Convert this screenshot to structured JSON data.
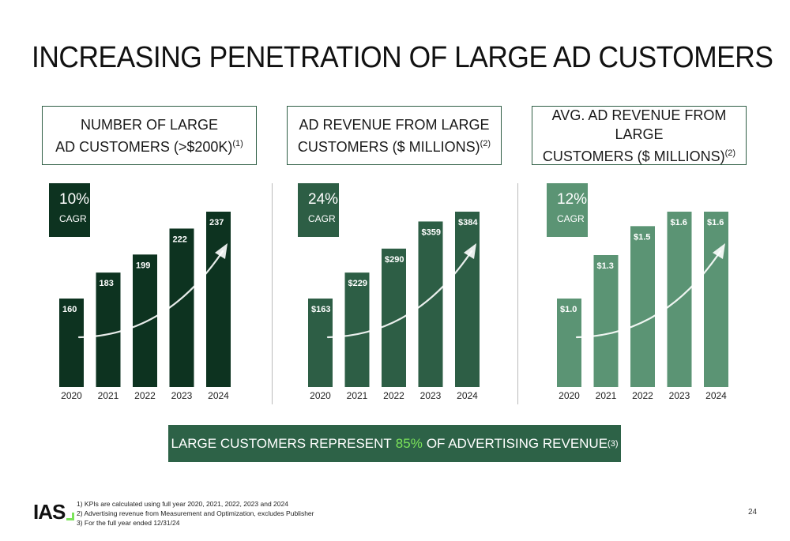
{
  "title": "INCREASING PENETRATION OF LARGE AD CUSTOMERS",
  "chart_data": [
    {
      "type": "bar",
      "title_line1": "NUMBER OF LARGE",
      "title_line2": "AD CUSTOMERS (>$200K)",
      "title_note": "(1)",
      "cagr_value": "10%",
      "cagr_label": "CAGR",
      "categories": [
        "2020",
        "2021",
        "2022",
        "2023",
        "2024"
      ],
      "values": [
        160,
        183,
        199,
        222,
        237
      ],
      "labels": [
        "160",
        "183",
        "199",
        "222",
        "237"
      ],
      "bar_color": "#0d3320",
      "trend_arrow": true
    },
    {
      "type": "bar",
      "title_line1": "AD REVENUE FROM LARGE",
      "title_line2": "CUSTOMERS ($ MILLIONS)",
      "title_note": "(2)",
      "cagr_value": "24%",
      "cagr_label": "CAGR",
      "categories": [
        "2020",
        "2021",
        "2022",
        "2023",
        "2024"
      ],
      "values": [
        163,
        229,
        290,
        359,
        384
      ],
      "labels": [
        "$163",
        "$229",
        "$290",
        "$359",
        "$384"
      ],
      "bar_color": "#2d5e45",
      "trend_arrow": true
    },
    {
      "type": "bar",
      "title_line1": "AVG. AD REVENUE FROM LARGE",
      "title_line2": "CUSTOMERS ($ MILLIONS)",
      "title_note": "(2)",
      "cagr_value": "12%",
      "cagr_label": "CAGR",
      "categories": [
        "2020",
        "2021",
        "2022",
        "2023",
        "2024"
      ],
      "values": [
        1.0,
        1.3,
        1.5,
        1.6,
        1.6
      ],
      "labels": [
        "$1.0",
        "$1.3",
        "$1.5",
        "$1.6",
        "$1.6"
      ],
      "bar_color": "#5b9474",
      "trend_arrow": true
    }
  ],
  "banner": {
    "before": "LARGE CUSTOMERS REPRESENT",
    "highlight": "85%",
    "after": "OF ADVERTISING REVENUE",
    "note": "(3)",
    "highlight_color": "#7be35a"
  },
  "logo_text": "IAS",
  "footnotes": [
    "1) KPIs are calculated using full year 2020, 2021, 2022, 2023 and 2024",
    "2) Advertising revenue from Measurement and Optimization, excludes Publisher",
    "3) For the full year ended 12/31/24"
  ],
  "page_number": "24"
}
